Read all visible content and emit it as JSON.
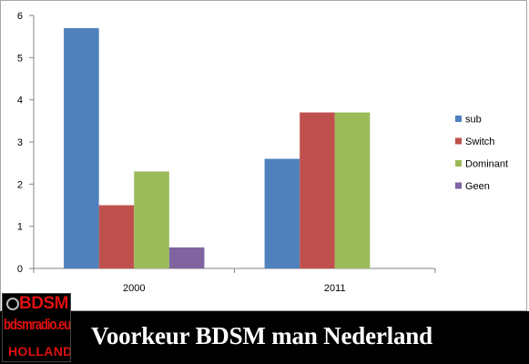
{
  "chart_data": {
    "type": "bar",
    "categories": [
      "2000",
      "2011"
    ],
    "series": [
      {
        "name": "sub",
        "color": "#4f81bd",
        "values": [
          5.7,
          2.6
        ]
      },
      {
        "name": "Switch",
        "color": "#c0504d",
        "values": [
          1.5,
          3.7
        ]
      },
      {
        "name": "Dominant",
        "color": "#9bbb59",
        "values": [
          2.3,
          3.7
        ]
      },
      {
        "name": "Geen",
        "color": "#8064a2",
        "values": [
          0.5,
          null
        ]
      }
    ],
    "ylim": [
      0,
      6
    ],
    "yticks": [
      "0",
      "1",
      "2",
      "3",
      "4",
      "5",
      "6"
    ],
    "legend_position": "right",
    "grid": false
  },
  "banner": {
    "title": "Voorkeur BDSM man Nederland"
  },
  "logo": {
    "brand": "BDSM",
    "site": "bdsmradio.eu",
    "region": "HOLLAND"
  }
}
